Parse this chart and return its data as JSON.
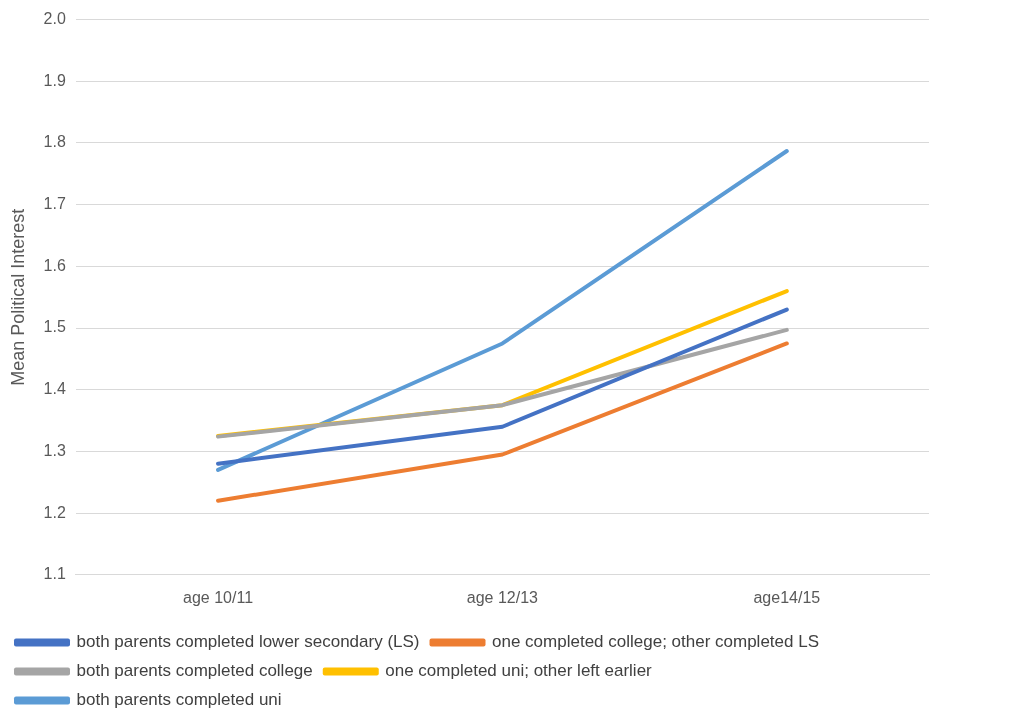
{
  "chart_data": {
    "type": "line",
    "ylabel": "Mean Political Interest",
    "categories": [
      "age 10/11",
      "age 12/13",
      "age14/15"
    ],
    "series": [
      {
        "name": "both parents completed lower secondary (LS)",
        "color": "#4472c4",
        "values": [
          1.28,
          1.34,
          1.53
        ]
      },
      {
        "name": "one completed college; other completed LS",
        "color": "#ed7d31",
        "values": [
          1.22,
          1.295,
          1.475
        ]
      },
      {
        "name": "both parents completed college",
        "color": "#a5a5a5",
        "values": [
          1.324,
          1.375,
          1.497
        ]
      },
      {
        "name": "one completed uni; other left earlier",
        "color": "#ffc000",
        "values": [
          1.325,
          1.375,
          1.56
        ]
      },
      {
        "name": "both parents completed uni",
        "color": "#5b9bd5",
        "values": [
          1.27,
          1.475,
          1.787
        ]
      }
    ],
    "ylim": [
      1.1,
      2.0
    ],
    "yticks": [
      1.1,
      1.2,
      1.3,
      1.4,
      1.5,
      1.6,
      1.7,
      1.8,
      1.9,
      {
        "value": 2,
        "label": "2.0"
      }
    ],
    "grid": "y",
    "legend": "bottom",
    "marker": "none",
    "line_style": "solid"
  }
}
